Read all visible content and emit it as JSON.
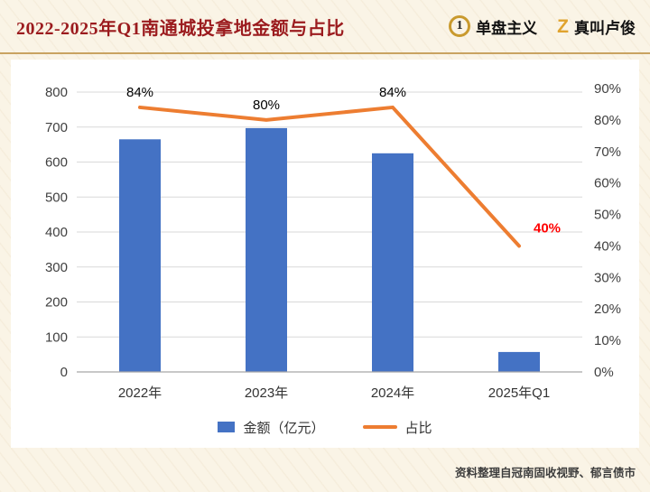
{
  "header": {
    "title": "2022-2025年Q1南通城投拿地金额与占比",
    "logos": [
      {
        "icon": "1",
        "label": "单盘主义"
      },
      {
        "icon": "Z",
        "label": "真叫卢俊"
      }
    ]
  },
  "chart_data": {
    "type": "bar+line",
    "categories": [
      "2022年",
      "2023年",
      "2024年",
      "2025年Q1"
    ],
    "series": [
      {
        "name": "金额（亿元）",
        "type": "bar",
        "axis": "left",
        "color": "#4472c4",
        "values": [
          665,
          697,
          625,
          57
        ]
      },
      {
        "name": "占比",
        "type": "line",
        "axis": "right",
        "color": "#ed7d31",
        "values": [
          84,
          80,
          84,
          40
        ]
      }
    ],
    "left_axis": {
      "min": 0,
      "max": 800,
      "step": 100,
      "ticks": [
        "800",
        "700",
        "600",
        "500",
        "400",
        "300",
        "200",
        "100",
        "0"
      ]
    },
    "right_axis": {
      "min": 0,
      "max": 90,
      "step": 10,
      "ticks": [
        "90%",
        "80%",
        "70%",
        "60%",
        "50%",
        "40%",
        "30%",
        "20%",
        "10%",
        "0%"
      ]
    },
    "point_labels": [
      {
        "text": "84%",
        "color": "#000000"
      },
      {
        "text": "80%",
        "color": "#000000"
      },
      {
        "text": "84%",
        "color": "#000000"
      },
      {
        "text": "40%",
        "color": "#ff0000"
      }
    ],
    "grid_color": "#d9d9d9",
    "axis_line_color": "#a6a6a6",
    "tick_text_color": "#404040",
    "legend_position": "bottom",
    "grid": true
  },
  "footer": {
    "source": "资料整理自冠南固收视野、郁言债市"
  }
}
